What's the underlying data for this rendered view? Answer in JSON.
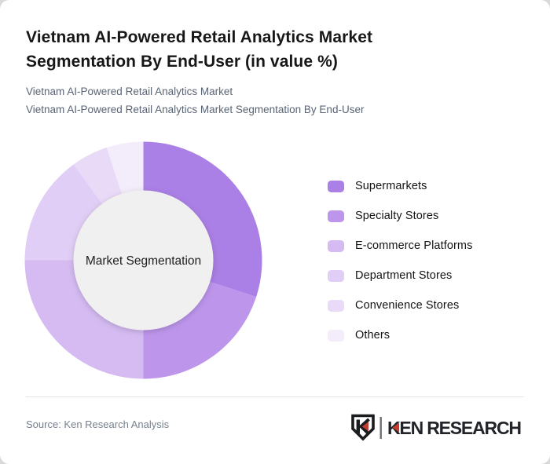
{
  "header": {
    "title": "Vietnam AI-Powered Retail Analytics Market Segmentation By End-User (in value %)",
    "subtitle_line1": "Vietnam AI-Powered Retail Analytics Market",
    "subtitle_line2": "Vietnam AI-Powered Retail Analytics Market Segmentation By End-User"
  },
  "chart_data": {
    "type": "pie",
    "variant": "donut",
    "title": "Vietnam AI-Powered Retail Analytics Market Segmentation By End-User (in value %)",
    "center_label": "Market Segmentation",
    "categories": [
      "Supermarkets",
      "Specialty Stores",
      "E-commerce Platforms",
      "Department Stores",
      "Convenience Stores",
      "Others"
    ],
    "values": [
      30,
      20,
      25,
      15,
      5,
      5
    ],
    "unit": "value %",
    "colors": [
      "#ab80e6",
      "#bd96ec",
      "#d5bbf2",
      "#e1cef6",
      "#e9daf8",
      "#f3edfb"
    ],
    "start_angle_deg": 0,
    "direction": "clockwise",
    "legend_position": "right",
    "inner_circle_color": "#f0f0f0",
    "center_label_color": "#1f1f1f"
  },
  "footer": {
    "source_text": "Source: Ken Research Analysis",
    "logo_text": "KEN RESEARCH",
    "logo_dark_color": "#212429",
    "logo_accent_color": "#c53b30"
  }
}
